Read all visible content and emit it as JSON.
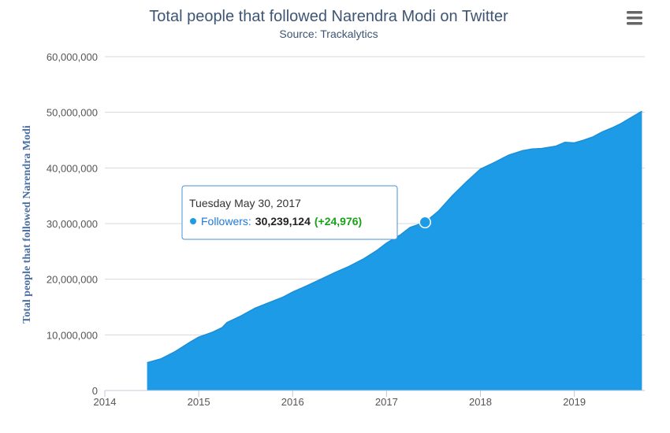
{
  "chart_data": {
    "type": "area",
    "title": "Total people that followed Narendra Modi on Twitter",
    "subtitle": "Source: Trackalytics",
    "ylabel": "Total people that followed Narendra Modi",
    "xlabel": "",
    "xlim": [
      2014.0,
      2019.75
    ],
    "ylim": [
      0,
      60000000
    ],
    "yticks": [
      0,
      10000000,
      20000000,
      30000000,
      40000000,
      50000000,
      60000000
    ],
    "ytick_labels": [
      "0",
      "10,000,000",
      "20,000,000",
      "30,000,000",
      "40,000,000",
      "50,000,000",
      "60,000,000"
    ],
    "xticks": [
      2014,
      2015,
      2016,
      2017,
      2018,
      2019
    ],
    "xtick_labels": [
      "2014",
      "2015",
      "2016",
      "2017",
      "2018",
      "2019"
    ],
    "grid": true,
    "legend": false,
    "series": [
      {
        "name": "Followers",
        "color": "#1e9be6",
        "x": [
          2014.45,
          2014.6,
          2014.75,
          2014.9,
          2015.0,
          2015.15,
          2015.25,
          2015.3,
          2015.45,
          2015.6,
          2015.75,
          2015.9,
          2016.0,
          2016.15,
          2016.3,
          2016.45,
          2016.6,
          2016.75,
          2016.9,
          2017.0,
          2017.15,
          2017.25,
          2017.41,
          2017.55,
          2017.7,
          2017.85,
          2018.0,
          2018.15,
          2018.3,
          2018.45,
          2018.55,
          2018.65,
          2018.8,
          2018.9,
          2019.0,
          2019.1,
          2019.2,
          2019.3,
          2019.4,
          2019.5,
          2019.6,
          2019.72
        ],
        "values": [
          5000000,
          5700000,
          7000000,
          8600000,
          9600000,
          10500000,
          11300000,
          12200000,
          13400000,
          14800000,
          15800000,
          16800000,
          17700000,
          18800000,
          20000000,
          21200000,
          22300000,
          23600000,
          25200000,
          26500000,
          28000000,
          29300000,
          30239124,
          32200000,
          35000000,
          37500000,
          39800000,
          41000000,
          42300000,
          43100000,
          43400000,
          43500000,
          43900000,
          44600000,
          44500000,
          45000000,
          45600000,
          46500000,
          47200000,
          48000000,
          49000000,
          50200000
        ]
      }
    ],
    "tooltip": {
      "date": "Tuesday May 30, 2017",
      "series_label": "Followers:",
      "value": "30,239,124",
      "change": "(+24,976)",
      "x": 2017.41,
      "y": 30239124
    }
  },
  "colors": {
    "title": "#3e5573",
    "area": "#1e9be6",
    "change_positive": "#1aa11a",
    "axis_label": "#4a6fa0"
  },
  "icons": {
    "menu": "hamburger-menu-icon"
  }
}
